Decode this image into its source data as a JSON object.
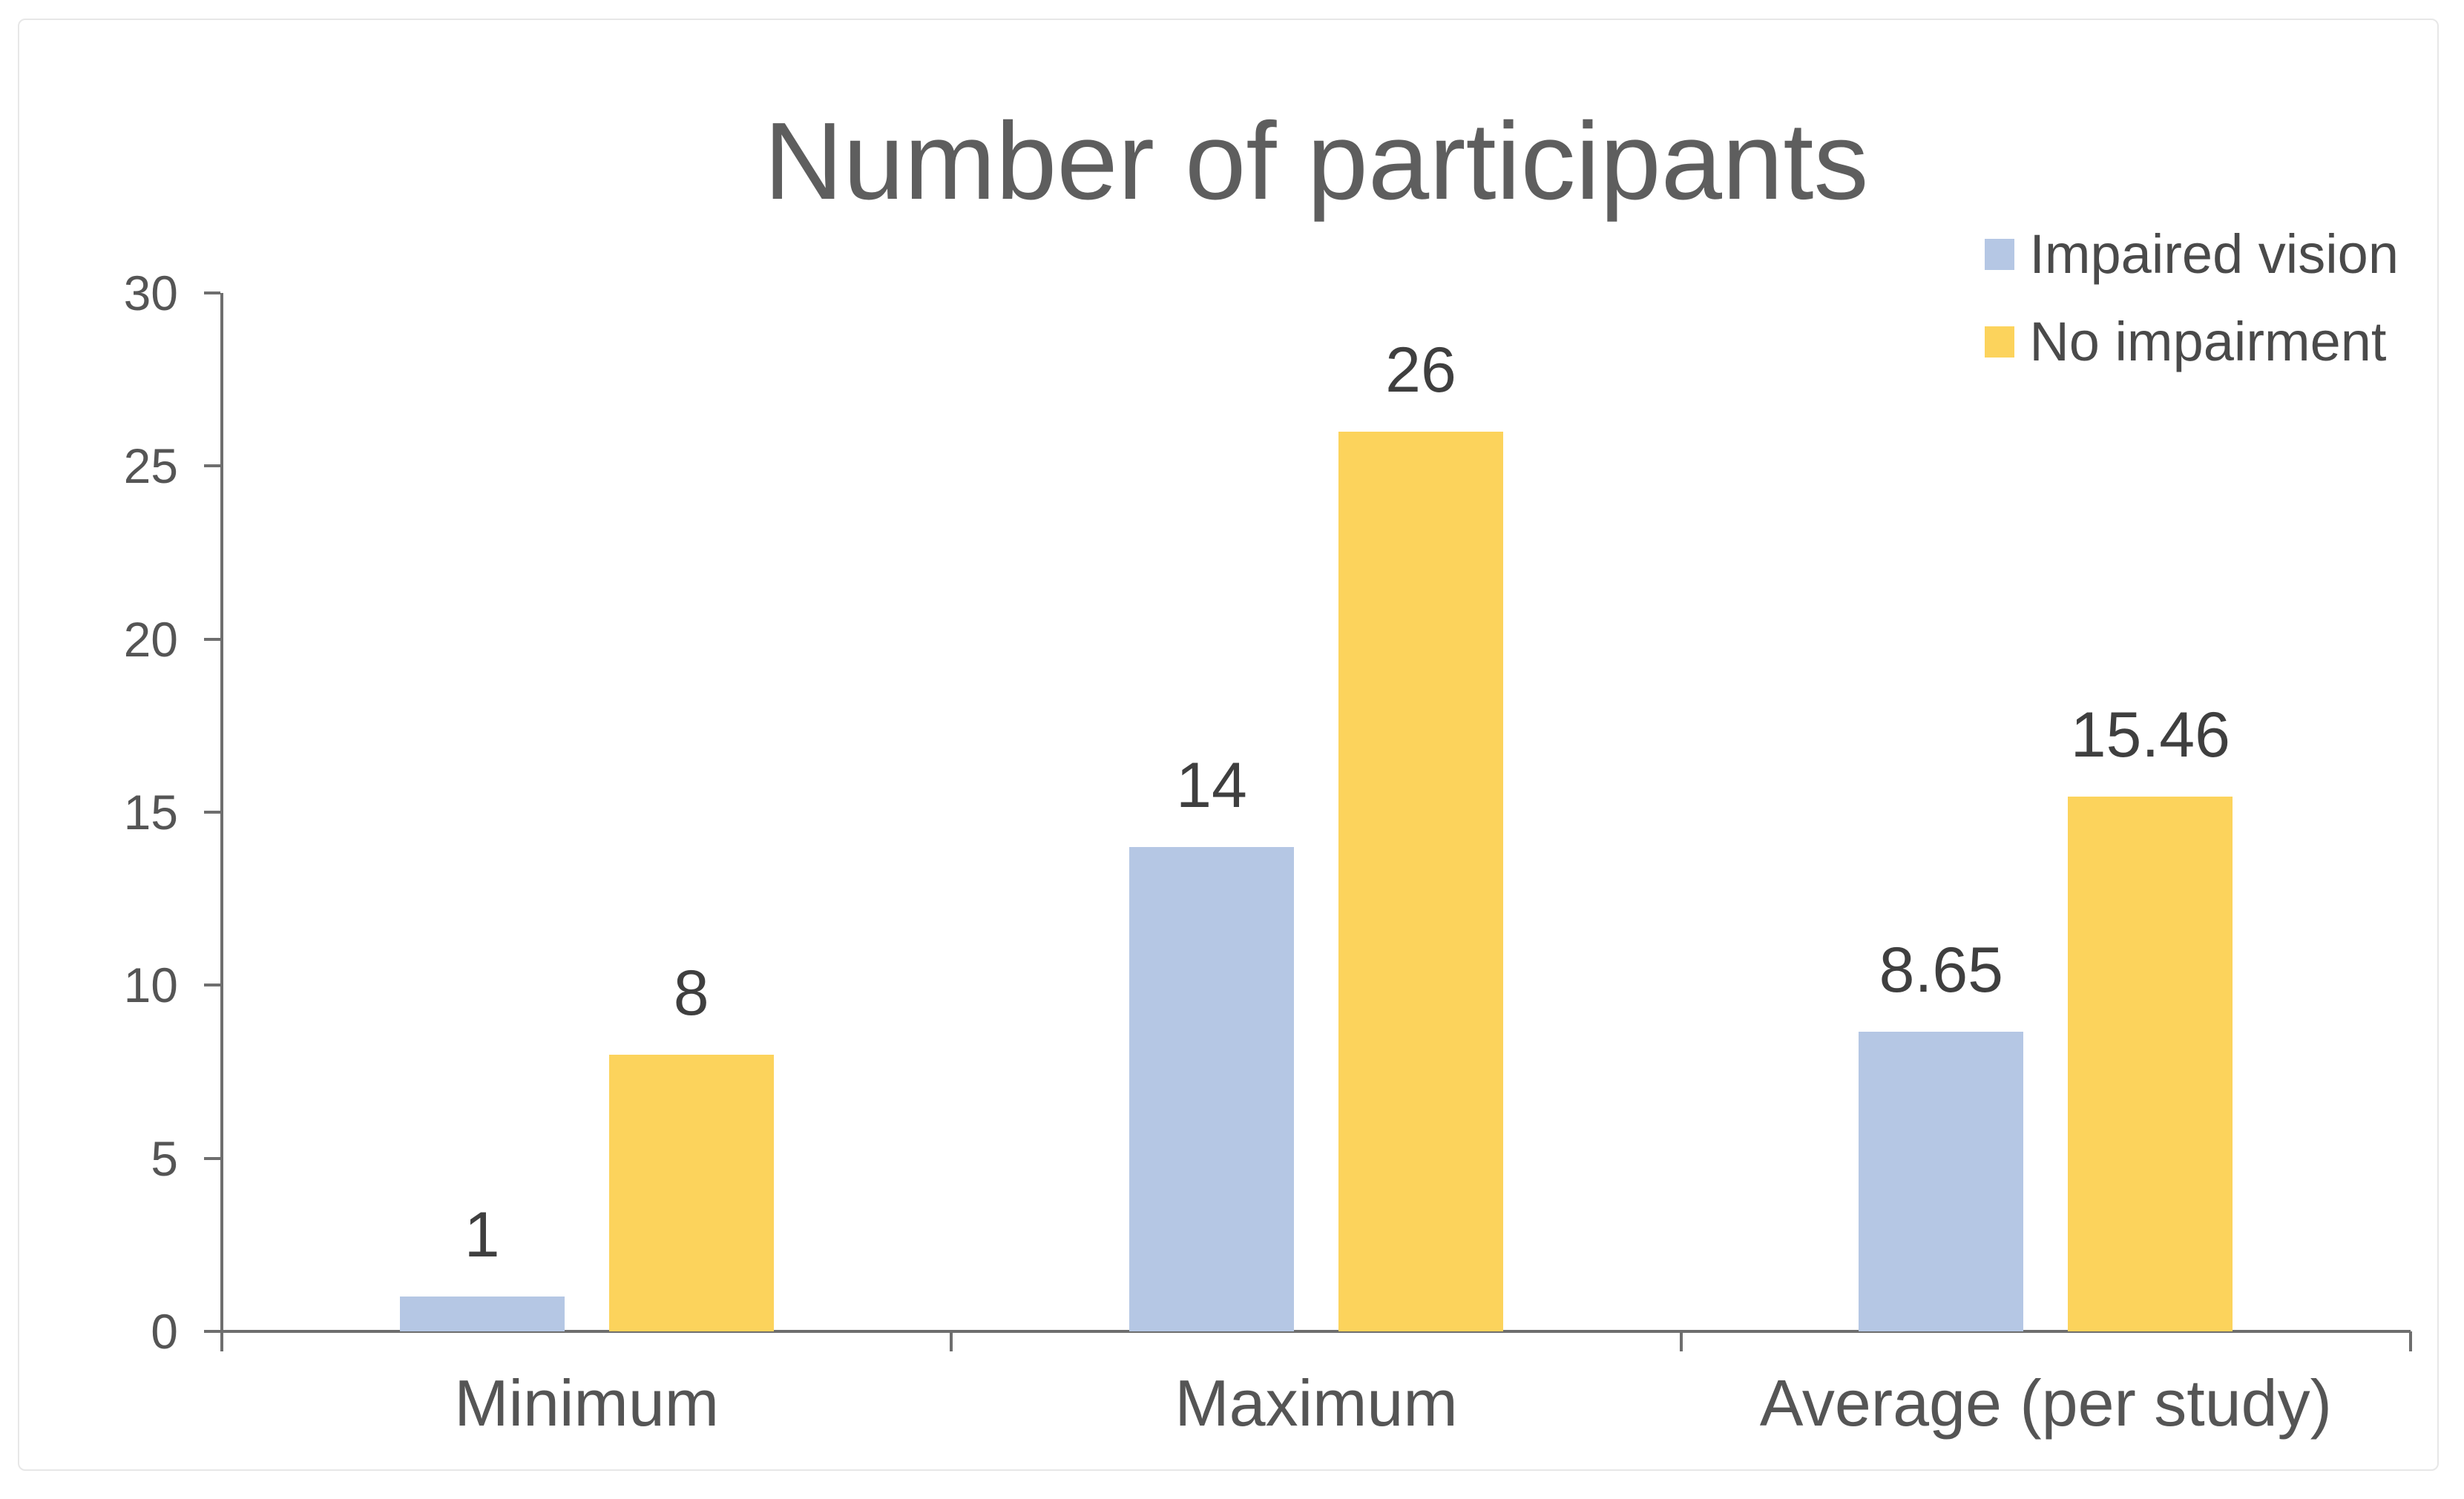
{
  "chart_data": {
    "type": "bar",
    "title": "Number of participants",
    "categories": [
      "Minimum",
      "Maximum",
      "Average (per study)"
    ],
    "series": [
      {
        "name": "Impaired vision",
        "color": "#b5c7e4",
        "values": [
          1,
          14,
          8.65
        ],
        "labels": [
          "1",
          "14",
          "8.65"
        ]
      },
      {
        "name": "No impairment",
        "color": "#fcd35c",
        "values": [
          8,
          26,
          15.46
        ],
        "labels": [
          "8",
          "26",
          "15.46"
        ]
      }
    ],
    "ylim": [
      0,
      30
    ],
    "yticks": [
      0,
      5,
      10,
      15,
      20,
      25,
      30
    ],
    "ytick_labels": [
      "0",
      "5",
      "10",
      "15",
      "20",
      "25",
      "30"
    ],
    "grid": false,
    "legend_position": "top-right",
    "bar_label_position": "above"
  },
  "colors": {
    "impaired_vision_bar": "#b5c7e4",
    "no_impairment_bar": "#fcd35c",
    "title_text": "#5e5e5e",
    "axis_line": "#6e6e6e",
    "tick_text": "#555555",
    "bar_label_text": "#3f3f3f",
    "legend_text": "#4a4a4a",
    "canvas_border": "#e7e7e7",
    "background": "#ffffff"
  }
}
